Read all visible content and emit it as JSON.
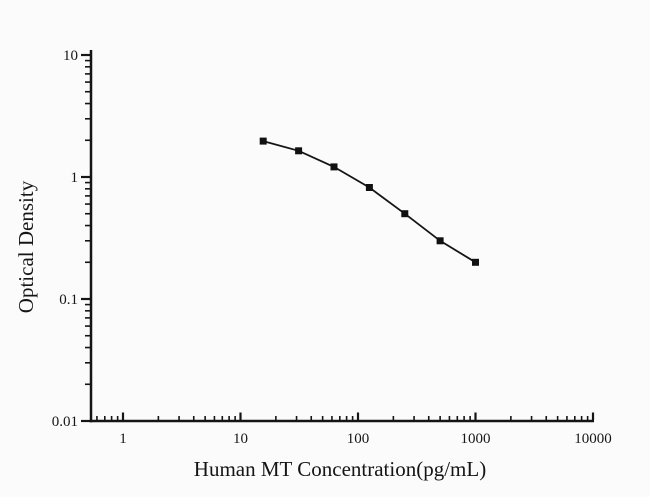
{
  "chart_data": {
    "type": "line",
    "title": "",
    "xlabel": "Human MT Concentration(pg/mL)",
    "ylabel": "Optical Density",
    "x_scale": "log",
    "y_scale": "log",
    "xlim": [
      0.55,
      10000
    ],
    "ylim": [
      0.01,
      10
    ],
    "x_ticks": [
      1,
      10,
      100,
      1000,
      10000
    ],
    "x_tick_labels": [
      "1",
      "10",
      "100",
      "1000",
      "10000"
    ],
    "y_ticks": [
      0.01,
      0.1,
      1,
      10
    ],
    "y_tick_labels": [
      "0.01",
      "0.1",
      "1",
      "10"
    ],
    "grid": false,
    "legend_position": "none",
    "line_color": "#151515",
    "marker": "square",
    "marker_color": "#111111",
    "series": [
      {
        "x": [
          15.6,
          31.25,
          62.5,
          125,
          250,
          500,
          1000
        ],
        "y": [
          1.97,
          1.64,
          1.21,
          0.82,
          0.5,
          0.3,
          0.2
        ]
      }
    ]
  }
}
